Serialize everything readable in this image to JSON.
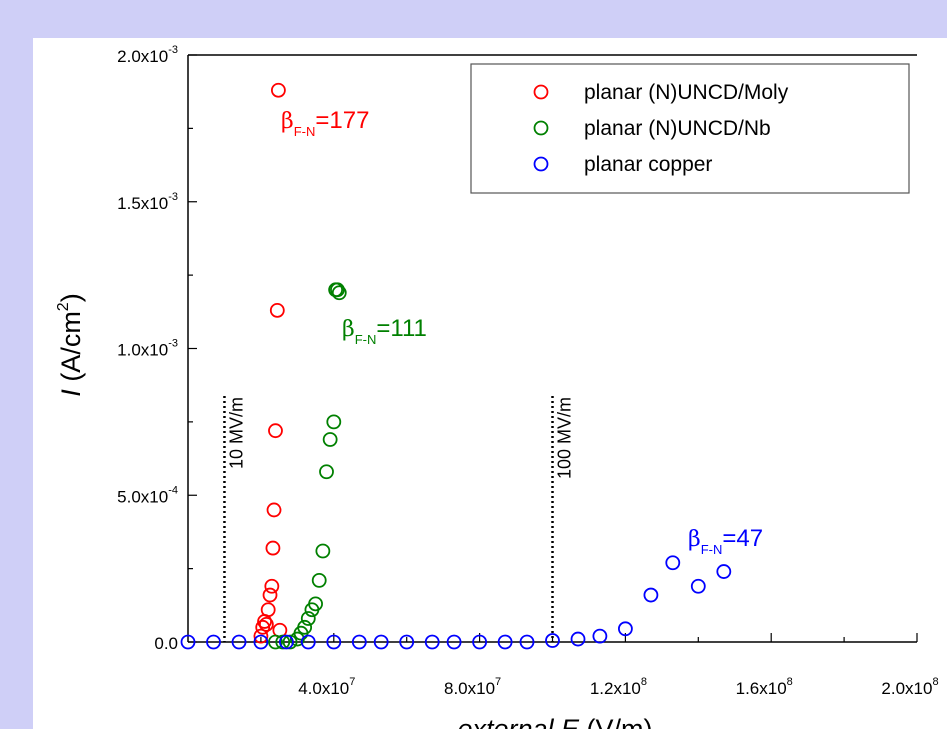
{
  "colors": {
    "background": "#cfcff7",
    "panel": "#ffffff",
    "moly": "#ff0000",
    "nb": "#008000",
    "copper": "#0000ff",
    "axis": "#000000"
  },
  "chart_data": {
    "type": "scatter",
    "xlabel_italic": "external E",
    "xlabel_unit": "(V/m)",
    "ylabel_italic": "I",
    "ylabel_unit": "(A/cm",
    "ylabel_sup": "2",
    "ylabel_close": ")",
    "xlim": [
      0,
      200000000
    ],
    "ylim": [
      0,
      0.002
    ],
    "x_ticks": [
      {
        "value": 40000000,
        "mant": "4.0x10",
        "exp": "7"
      },
      {
        "value": 80000000,
        "mant": "8.0x10",
        "exp": "7"
      },
      {
        "value": 120000000,
        "mant": "1.2x10",
        "exp": "8"
      },
      {
        "value": 160000000,
        "mant": "1.6x10",
        "exp": "8"
      },
      {
        "value": 200000000,
        "mant": "2.0x10",
        "exp": "8"
      }
    ],
    "y_ticks": [
      {
        "value": 0,
        "mant": "0.0",
        "exp": ""
      },
      {
        "value": 0.0005,
        "mant": "5.0x10",
        "exp": "-4"
      },
      {
        "value": 0.001,
        "mant": "1.0x10",
        "exp": "-3"
      },
      {
        "value": 0.0015,
        "mant": "1.5x10",
        "exp": "-3"
      },
      {
        "value": 0.002,
        "mant": "2.0x10",
        "exp": "-3"
      }
    ],
    "legend_position": "top-right",
    "series": [
      {
        "name": "planar (N)UNCD/Moly",
        "color": "#ff0000",
        "x": [
          20000000,
          20500000,
          21000000,
          21500000,
          22000000,
          22500000,
          23000000,
          23300000,
          23600000,
          24000000,
          24500000,
          24800000,
          25200000
        ],
        "y": [
          2e-05,
          5e-05,
          7e-05,
          6e-05,
          0.00011,
          0.00016,
          0.00019,
          0.00032,
          0.00045,
          0.00072,
          0.00113,
          0.00188,
          4e-05
        ]
      },
      {
        "name": "planar (N)UNCD/Nb",
        "color": "#008000",
        "x": [
          24000000,
          26000000,
          28000000,
          30000000,
          31000000,
          32000000,
          33000000,
          34000000,
          35000000,
          36000000,
          37000000,
          38000000,
          39000000,
          40000000,
          40500000,
          41000000,
          41500000
        ],
        "y": [
          0.0,
          0.0,
          0.0,
          1e-05,
          3e-05,
          5e-05,
          8e-05,
          0.00011,
          0.00013,
          0.00021,
          0.00031,
          0.00058,
          0.00069,
          0.00075,
          0.0012,
          0.0012,
          0.00119
        ]
      },
      {
        "name": "planar copper",
        "color": "#0000ff",
        "x": [
          0,
          7000000,
          14000000,
          20000000,
          27000000,
          33000000,
          40000000,
          47000000,
          53000000,
          60000000,
          67000000,
          73000000,
          80000000,
          87000000,
          93000000,
          100000000,
          107000000,
          113000000,
          120000000,
          127000000,
          133000000,
          140000000,
          147000000
        ],
        "y": [
          0,
          0,
          0,
          0,
          0,
          0,
          0,
          0,
          0,
          0,
          0,
          0,
          0,
          0,
          0,
          5e-06,
          1e-05,
          2e-05,
          4.5e-05,
          0.00016,
          0.00027,
          0.00019,
          0.00024
        ]
      }
    ],
    "annotations": [
      {
        "id": "moly-beta",
        "base": "β",
        "sub": "F-N",
        "value": "=177",
        "color": "#ff0000"
      },
      {
        "id": "nb-beta",
        "base": "β",
        "sub": "F-N",
        "value": "=111",
        "color": "#008000"
      },
      {
        "id": "copper-beta",
        "base": "β",
        "sub": "F-N",
        "value": "=47",
        "color": "#0000ff"
      }
    ],
    "reference_lines": [
      {
        "id": "line-10",
        "x": 10000000,
        "label": "10 MV/m",
        "style": "dotted"
      },
      {
        "id": "line-100",
        "x": 100000000,
        "label": "100 MV/m",
        "style": "dotted"
      }
    ]
  }
}
